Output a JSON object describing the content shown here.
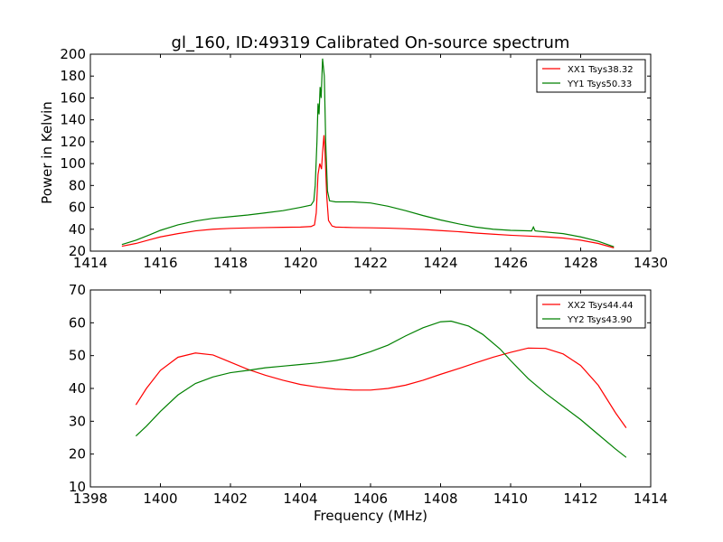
{
  "title": "gl_160, ID:49319 Calibrated On-source spectrum",
  "colors": {
    "xx": "#ff0000",
    "yy": "#008000",
    "axes": "#000000",
    "background": "#ffffff"
  },
  "chart_data": [
    {
      "type": "line",
      "title": "gl_160, ID:49319 Calibrated On-source spectrum",
      "xlabel": "",
      "ylabel": "Power in Kelvin",
      "xlim": [
        1414,
        1430
      ],
      "ylim": [
        20,
        200
      ],
      "xticks": [
        1414,
        1416,
        1418,
        1420,
        1422,
        1424,
        1426,
        1428,
        1430
      ],
      "yticks": [
        20,
        40,
        60,
        80,
        100,
        120,
        140,
        160,
        180,
        200
      ],
      "grid": false,
      "legend_position": "top-right",
      "series": [
        {
          "name": "XX1 Tsys38.32",
          "color": "#ff0000",
          "points": [
            [
              1414.9,
              24.5
            ],
            [
              1415.3,
              27
            ],
            [
              1415.7,
              30.5
            ],
            [
              1416.0,
              33
            ],
            [
              1416.5,
              36
            ],
            [
              1417.0,
              38.5
            ],
            [
              1417.5,
              40
            ],
            [
              1418.0,
              40.8
            ],
            [
              1418.5,
              41.2
            ],
            [
              1419.0,
              41.5
            ],
            [
              1419.5,
              41.8
            ],
            [
              1420.0,
              42
            ],
            [
              1420.3,
              42.5
            ],
            [
              1420.4,
              44
            ],
            [
              1420.45,
              55
            ],
            [
              1420.5,
              90
            ],
            [
              1420.55,
              100
            ],
            [
              1420.6,
              95
            ],
            [
              1420.63,
              110
            ],
            [
              1420.67,
              126
            ],
            [
              1420.7,
              110
            ],
            [
              1420.75,
              70
            ],
            [
              1420.8,
              48
            ],
            [
              1420.9,
              43
            ],
            [
              1421.0,
              42
            ],
            [
              1421.5,
              41.5
            ],
            [
              1422.0,
              41.3
            ],
            [
              1422.5,
              41
            ],
            [
              1423.0,
              40.5
            ],
            [
              1423.5,
              39.8
            ],
            [
              1424.0,
              38.8
            ],
            [
              1424.5,
              37.8
            ],
            [
              1425.0,
              36.5
            ],
            [
              1425.5,
              35.5
            ],
            [
              1426.0,
              34.5
            ],
            [
              1426.5,
              33.8
            ],
            [
              1427.0,
              33
            ],
            [
              1427.5,
              32
            ],
            [
              1428.0,
              30
            ],
            [
              1428.5,
              27
            ],
            [
              1428.95,
              23
            ]
          ]
        },
        {
          "name": "YY1 Tsys50.33",
          "color": "#008000",
          "points": [
            [
              1414.9,
              26
            ],
            [
              1415.3,
              30
            ],
            [
              1415.7,
              35
            ],
            [
              1416.0,
              39
            ],
            [
              1416.5,
              44
            ],
            [
              1417.0,
              47.5
            ],
            [
              1417.5,
              50
            ],
            [
              1418.0,
              51.5
            ],
            [
              1418.5,
              53
            ],
            [
              1419.0,
              55
            ],
            [
              1419.5,
              57
            ],
            [
              1420.0,
              60
            ],
            [
              1420.3,
              62
            ],
            [
              1420.38,
              66
            ],
            [
              1420.42,
              80
            ],
            [
              1420.47,
              120
            ],
            [
              1420.5,
              155
            ],
            [
              1420.53,
              145
            ],
            [
              1420.56,
              170
            ],
            [
              1420.59,
              160
            ],
            [
              1420.63,
              196
            ],
            [
              1420.68,
              180
            ],
            [
              1420.72,
              120
            ],
            [
              1420.77,
              75
            ],
            [
              1420.83,
              66
            ],
            [
              1421.0,
              65
            ],
            [
              1421.5,
              65
            ],
            [
              1422.0,
              64
            ],
            [
              1422.5,
              61
            ],
            [
              1423.0,
              57
            ],
            [
              1423.5,
              52.5
            ],
            [
              1424.0,
              48.5
            ],
            [
              1424.5,
              45
            ],
            [
              1425.0,
              42
            ],
            [
              1425.5,
              40
            ],
            [
              1426.0,
              39
            ],
            [
              1426.6,
              38.5
            ],
            [
              1426.65,
              42
            ],
            [
              1426.7,
              38.5
            ],
            [
              1427.0,
              37.5
            ],
            [
              1427.5,
              36
            ],
            [
              1428.0,
              33
            ],
            [
              1428.5,
              29
            ],
            [
              1428.95,
              24
            ]
          ]
        }
      ]
    },
    {
      "type": "line",
      "title": "",
      "xlabel": "Frequency (MHz)",
      "ylabel": "",
      "xlim": [
        1398,
        1414
      ],
      "ylim": [
        10,
        70
      ],
      "xticks": [
        1398,
        1400,
        1402,
        1404,
        1406,
        1408,
        1410,
        1412,
        1414
      ],
      "yticks": [
        10,
        20,
        30,
        40,
        50,
        60,
        70
      ],
      "grid": false,
      "legend_position": "top-right",
      "series": [
        {
          "name": "XX2 Tsys44.44",
          "color": "#ff0000",
          "points": [
            [
              1399.3,
              35
            ],
            [
              1399.6,
              40
            ],
            [
              1400.0,
              45.5
            ],
            [
              1400.5,
              49.5
            ],
            [
              1401.0,
              50.8
            ],
            [
              1401.5,
              50.2
            ],
            [
              1402.0,
              48
            ],
            [
              1402.5,
              45.8
            ],
            [
              1403.0,
              44
            ],
            [
              1403.5,
              42.5
            ],
            [
              1404.0,
              41.2
            ],
            [
              1404.5,
              40.4
            ],
            [
              1405.0,
              39.8
            ],
            [
              1405.5,
              39.5
            ],
            [
              1406.0,
              39.5
            ],
            [
              1406.5,
              40
            ],
            [
              1407.0,
              41
            ],
            [
              1407.5,
              42.5
            ],
            [
              1408.0,
              44.3
            ],
            [
              1408.5,
              46
            ],
            [
              1409.0,
              47.8
            ],
            [
              1409.5,
              49.5
            ],
            [
              1410.0,
              51
            ],
            [
              1410.5,
              52.3
            ],
            [
              1411.0,
              52.2
            ],
            [
              1411.5,
              50.5
            ],
            [
              1412.0,
              47
            ],
            [
              1412.5,
              41
            ],
            [
              1413.0,
              32.5
            ],
            [
              1413.3,
              28
            ]
          ]
        },
        {
          "name": "YY2 Tsys43.90",
          "color": "#008000",
          "points": [
            [
              1399.3,
              25.5
            ],
            [
              1399.6,
              28.5
            ],
            [
              1400.0,
              33
            ],
            [
              1400.5,
              38
            ],
            [
              1401.0,
              41.5
            ],
            [
              1401.5,
              43.5
            ],
            [
              1402.0,
              44.8
            ],
            [
              1402.5,
              45.5
            ],
            [
              1403.0,
              46.3
            ],
            [
              1403.5,
              46.8
            ],
            [
              1404.0,
              47.3
            ],
            [
              1404.5,
              47.8
            ],
            [
              1405.0,
              48.5
            ],
            [
              1405.5,
              49.5
            ],
            [
              1406.0,
              51.2
            ],
            [
              1406.5,
              53.2
            ],
            [
              1407.0,
              56
            ],
            [
              1407.5,
              58.5
            ],
            [
              1408.0,
              60.3
            ],
            [
              1408.3,
              60.5
            ],
            [
              1408.8,
              59
            ],
            [
              1409.2,
              56.5
            ],
            [
              1409.7,
              52
            ],
            [
              1410.0,
              48.5
            ],
            [
              1410.5,
              43
            ],
            [
              1411.0,
              38.5
            ],
            [
              1411.5,
              34.5
            ],
            [
              1412.0,
              30.5
            ],
            [
              1412.5,
              26
            ],
            [
              1413.0,
              21.5
            ],
            [
              1413.3,
              19
            ]
          ]
        }
      ]
    }
  ]
}
